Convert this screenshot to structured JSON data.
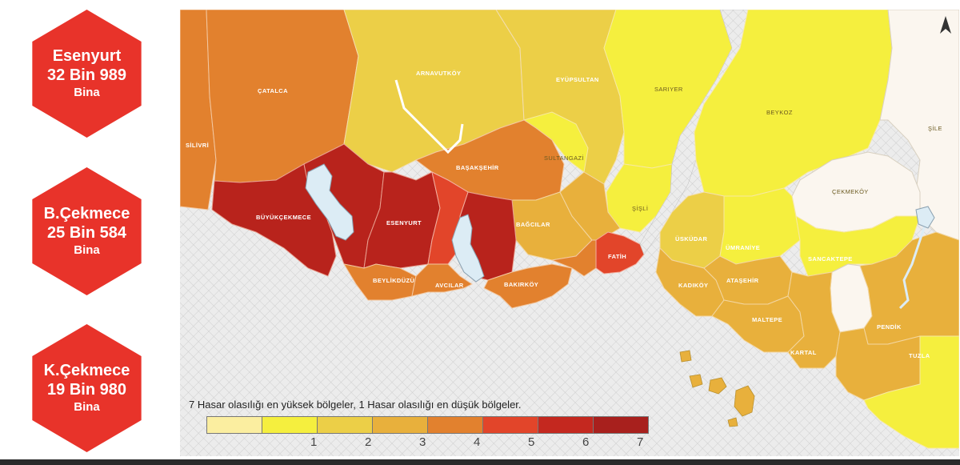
{
  "sidebar": {
    "badges": [
      {
        "name": "Esenyurt",
        "count": "32 Bin 989",
        "unit": "Bina"
      },
      {
        "name": "B.Çekmece",
        "count": "25 Bin 584",
        "unit": "Bina"
      },
      {
        "name": "K.Çekmece",
        "count": "19 Bin 980",
        "unit": "Bina"
      }
    ]
  },
  "map": {
    "districts": {
      "catalca": "ÇATALCA",
      "silivri": "SİLİVRİ",
      "arnavutkoy": "ARNAVUTKÖY",
      "eyupsultan": "EYÜPSULTAN",
      "sariyer": "SARIYER",
      "beykoz": "BEYKOZ",
      "sile": "ŞİLE",
      "basaksehir": "BAŞAKŞEHİR",
      "sultangazi": "SULTANGAZİ",
      "cekmekoy": "ÇEKMEKÖY",
      "sisli": "ŞİŞLİ",
      "buyukcekmece": "BÜYÜKÇEKMECE",
      "esenyurt": "ESENYURT",
      "bagcilar": "BAĞCILAR",
      "uskudar": "ÜSKÜDAR",
      "umraniye": "ÜMRANİYE",
      "sancaktepe": "SANCAKTEPE",
      "fatih": "FATİH",
      "beylikduzu": "BEYLİKDÜZÜ",
      "avcilar": "AVCILAR",
      "bakirkoy": "BAKIRKÖY",
      "kadikoy": "KADIKÖY",
      "atasehir": "ATAŞEHİR",
      "maltepe": "MALTEPE",
      "kartal": "KARTAL",
      "pendik": "PENDİK",
      "tuzla": "TUZLA"
    }
  },
  "legend": {
    "title": "7 Hasar olasılığı en yüksek bölgeler, 1 Hasar olasılığı en düşük bölgeler.",
    "scale": [
      {
        "label": "",
        "color": "#fbeea0"
      },
      {
        "label": "1",
        "color": "#f5ef3e"
      },
      {
        "label": "2",
        "color": "#eccf47"
      },
      {
        "label": "3",
        "color": "#e8b03c"
      },
      {
        "label": "4",
        "color": "#e2812e"
      },
      {
        "label": "5",
        "color": "#e2452a"
      },
      {
        "label": "6",
        "color": "#c4281f"
      },
      {
        "label": "7",
        "color": ""
      }
    ]
  },
  "colors": {
    "badge": "#e8332a",
    "level_lightest": "#fbeea0",
    "level_1": "#f5ef3e",
    "level_2": "#eccf47",
    "level_3": "#e8b03c",
    "level_4": "#e2812e",
    "level_5": "#e2452a",
    "level_6": "#c4281f",
    "level_7": "#a8201d",
    "sea": "#ebebeb",
    "lake": "#dcecf5",
    "unrated": "#fbf6ef"
  },
  "icons": {
    "north_arrow": "north-arrow-icon"
  }
}
